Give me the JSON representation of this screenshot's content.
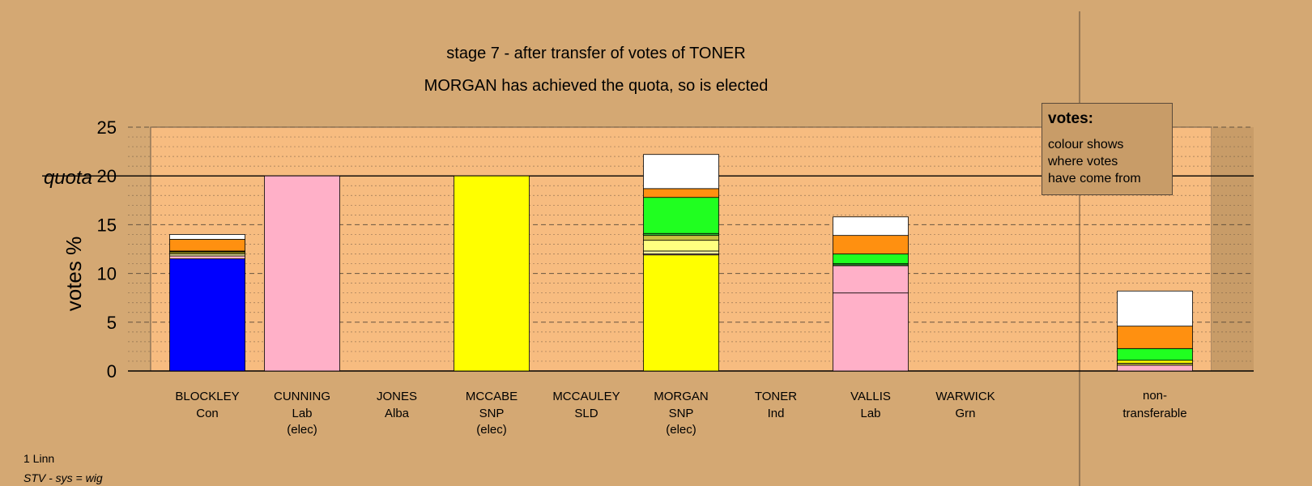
{
  "chart_data": {
    "type": "bar",
    "stacked": true,
    "title": "stage 7 - after transfer of votes of TONER",
    "subtitle": "MORGAN has achieved the quota, so is elected",
    "ylabel": "votes %",
    "ylim": [
      0,
      25
    ],
    "yticks": [
      0,
      5,
      10,
      15,
      20,
      25
    ],
    "quota": 20,
    "quota_label": "quota",
    "grid": true,
    "candidates": [
      {
        "name": "BLOCKLEY",
        "party": "Con",
        "status": "",
        "segments": [
          {
            "color": "#0000ff",
            "value": 11.5
          },
          {
            "color": "#ffb0c8",
            "value": 0.3
          },
          {
            "color": "#f5f0a0",
            "value": 0.2
          },
          {
            "color": "#c8c040",
            "value": 0.15
          },
          {
            "color": "#ffff00",
            "value": 0.1
          },
          {
            "color": "#20ff20",
            "value": 0.05
          },
          {
            "color": "#ff9010",
            "value": 1.2
          },
          {
            "color": "#ffffff",
            "value": 0.5
          }
        ]
      },
      {
        "name": "CUNNING",
        "party": "Lab",
        "status": "(elec)",
        "segments": [
          {
            "color": "#ffb0c8",
            "value": 20
          }
        ]
      },
      {
        "name": "JONES",
        "party": "Alba",
        "status": "",
        "segments": []
      },
      {
        "name": "MCCABE",
        "party": "SNP",
        "status": "(elec)",
        "segments": [
          {
            "color": "#ffff00",
            "value": 20
          }
        ]
      },
      {
        "name": "MCCAULEY",
        "party": "SLD",
        "status": "",
        "segments": []
      },
      {
        "name": "MORGAN",
        "party": "SNP",
        "status": "(elec)",
        "segments": [
          {
            "color": "#ffff00",
            "value": 11.9
          },
          {
            "color": "#ffb0c8",
            "value": 0.1
          },
          {
            "color": "#f5f0a0",
            "value": 0.3
          },
          {
            "color": "#ffff80",
            "value": 1.1
          },
          {
            "color": "#c8c040",
            "value": 0.5
          },
          {
            "color": "#30c030",
            "value": 0.2
          },
          {
            "color": "#20ff20",
            "value": 3.7
          },
          {
            "color": "#ff9010",
            "value": 0.9
          },
          {
            "color": "#ffffff",
            "value": 3.5
          }
        ]
      },
      {
        "name": "TONER",
        "party": "Ind",
        "status": "",
        "segments": []
      },
      {
        "name": "VALLIS",
        "party": "Lab",
        "status": "",
        "segments": [
          {
            "color": "#ffb0c8",
            "value": 8.0
          },
          {
            "color": "#ffb0c8",
            "value": 2.8
          },
          {
            "color": "#208020",
            "value": 0.2
          },
          {
            "color": "#20ff20",
            "value": 1.0
          },
          {
            "color": "#ff9010",
            "value": 1.9
          },
          {
            "color": "#ffffff",
            "value": 1.9
          }
        ]
      },
      {
        "name": "WARWICK",
        "party": "Grn",
        "status": "",
        "segments": []
      }
    ],
    "nontransferable": {
      "label_line1": "non-",
      "label_line2": "transferable",
      "segments": [
        {
          "color": "#ffb0c8",
          "value": 0.6
        },
        {
          "color": "#c8c040",
          "value": 0.2
        },
        {
          "color": "#ffff00",
          "value": 0.3
        },
        {
          "color": "#20ff20",
          "value": 1.2
        },
        {
          "color": "#ff9010",
          "value": 2.3
        },
        {
          "color": "#ffffff",
          "value": 3.6
        }
      ]
    }
  },
  "legend": {
    "title": "votes:",
    "lines": [
      "colour shows",
      "where votes",
      "have come from"
    ]
  },
  "footer": {
    "constituency": "1 Linn",
    "system": "STV - sys = wig"
  }
}
